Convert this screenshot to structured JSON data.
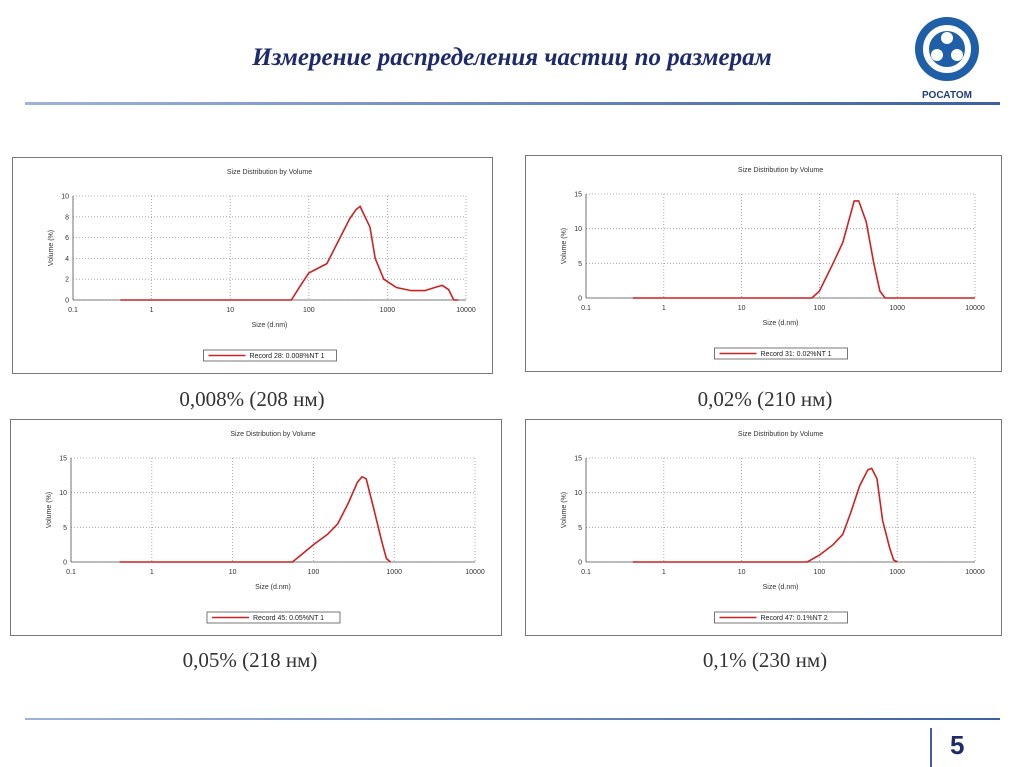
{
  "title": "Измерение распределения частиц по размерам",
  "logo_text": "РОСАТОМ",
  "page_number": "5",
  "chart_data": [
    {
      "type": "line",
      "title": "Size Distribution by Volume",
      "x_label": "Size (d.nm)",
      "y_label": "Volume (%)",
      "caption": "0,008% (208 нм)",
      "log_x": true,
      "grid": true,
      "xlim": [
        0.1,
        10000
      ],
      "xticks": [
        0.1,
        1,
        10,
        100,
        1000,
        10000
      ],
      "ylim": [
        0,
        10
      ],
      "yticks": [
        0,
        2,
        4,
        6,
        8,
        10
      ],
      "x": [
        0.4,
        10,
        60,
        80,
        100,
        170,
        250,
        330,
        400,
        450,
        600,
        700,
        900,
        1300,
        2000,
        3000,
        4000,
        5000,
        6000,
        7000,
        8000
      ],
      "series": [
        {
          "name": "Record 28: 0.008%NT 1",
          "color": "#cc2222",
          "values": [
            0,
            0,
            0,
            1.5,
            2.6,
            3.5,
            6,
            7.8,
            8.7,
            9,
            7,
            4,
            2,
            1.2,
            0.9,
            0.9,
            1.2,
            1.4,
            1,
            0,
            0
          ]
        }
      ]
    },
    {
      "type": "line",
      "title": "Size Distribution by Volume",
      "x_label": "Size (d.nm)",
      "y_label": "Volume (%)",
      "caption": "0,02% (210 нм)",
      "log_x": true,
      "grid": true,
      "xlim": [
        0.1,
        10000
      ],
      "xticks": [
        0.1,
        1,
        10,
        100,
        1000,
        10000
      ],
      "ylim": [
        0,
        15
      ],
      "yticks": [
        0,
        5,
        10,
        15
      ],
      "x": [
        0.4,
        10,
        80,
        100,
        150,
        200,
        250,
        280,
        320,
        400,
        500,
        600,
        700,
        1000,
        10000
      ],
      "series": [
        {
          "name": "Record 31: 0.02%NT 1",
          "color": "#cc2222",
          "values": [
            0,
            0,
            0,
            1,
            5,
            8,
            12,
            14,
            14,
            11,
            5,
            1,
            0,
            0,
            0
          ]
        }
      ]
    },
    {
      "type": "line",
      "title": "Size Distribution by Volume",
      "x_label": "Size (d.nm)",
      "y_label": "Volume (%)",
      "caption": "0,05% (218 нм)",
      "log_x": true,
      "grid": true,
      "xlim": [
        0.1,
        10000
      ],
      "xticks": [
        0.1,
        1,
        10,
        100,
        1000,
        10000
      ],
      "ylim": [
        0,
        15
      ],
      "yticks": [
        0,
        5,
        10,
        15
      ],
      "x": [
        0.4,
        10,
        55,
        70,
        100,
        150,
        200,
        270,
        350,
        400,
        450,
        550,
        700,
        800,
        900
      ],
      "series": [
        {
          "name": "Record 45: 0.05%NT 1",
          "color": "#cc2222",
          "values": [
            0,
            0,
            0,
            1,
            2.5,
            4,
            5.5,
            8.5,
            11.5,
            12.3,
            12,
            8,
            3,
            0.5,
            0
          ]
        }
      ]
    },
    {
      "type": "line",
      "title": "Size Distribution by Volume",
      "x_label": "Size (d.nm)",
      "y_label": "Volume (%)",
      "caption": "0,1% (230 нм)",
      "log_x": true,
      "grid": true,
      "xlim": [
        0.1,
        10000
      ],
      "xticks": [
        0.1,
        1,
        10,
        100,
        1000,
        10000
      ],
      "ylim": [
        0,
        15
      ],
      "yticks": [
        0,
        5,
        10,
        15
      ],
      "x": [
        0.4,
        10,
        70,
        100,
        150,
        200,
        250,
        330,
        420,
        470,
        550,
        650,
        800,
        900,
        1000
      ],
      "series": [
        {
          "name": "Record 47: 0.1%NT 2",
          "color": "#cc2222",
          "values": [
            0,
            0,
            0,
            1,
            2.5,
            4,
            7,
            11,
            13.3,
            13.5,
            12,
            6,
            2,
            0.3,
            0
          ]
        }
      ]
    }
  ]
}
